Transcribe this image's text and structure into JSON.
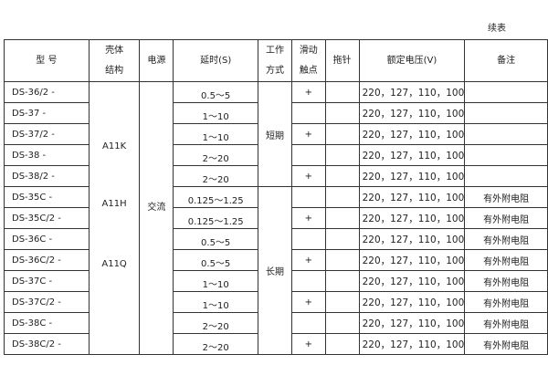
{
  "note": "续表",
  "headers": [
    "型 号",
    "壳体\n结构",
    "电源",
    "延时(S)",
    "工作\n方式",
    "滑动\n触点",
    "拖针",
    "额定电压(V)",
    "备注"
  ],
  "housing": [
    "A11K",
    "A11H",
    "A11Q"
  ],
  "power": "交流",
  "modes": [
    "短期",
    "长期"
  ],
  "rows": [
    {
      "model": "DS-36/2 -",
      "delay": "0.5～5",
      "slide": "+",
      "voltage": "220，127，110，100",
      "remark": ""
    },
    {
      "model": "DS-37  -",
      "delay": "1～10",
      "slide": "",
      "voltage": "220，127，110，100",
      "remark": ""
    },
    {
      "model": "DS-37/2 -",
      "delay": "1～10",
      "slide": "+",
      "voltage": "220，127，110，100",
      "remark": ""
    },
    {
      "model": "DS-38  -",
      "delay": "2～20",
      "slide": "",
      "voltage": "220，127，110，100",
      "remark": ""
    },
    {
      "model": "DS-38/2 -",
      "delay": "2～20",
      "slide": "+",
      "voltage": "220，127，110，100",
      "remark": ""
    },
    {
      "model": "DS-35C  -",
      "delay": "0.125～1.25",
      "slide": "",
      "voltage": "220，127，110，100",
      "remark": "有外附电阻"
    },
    {
      "model": "DS-35C/2 -",
      "delay": "0.125～1.25",
      "slide": "+",
      "voltage": "220，127，110，100",
      "remark": "有外附电阻"
    },
    {
      "model": "DS-36C  -",
      "delay": "0.5～5",
      "slide": "",
      "voltage": "220，127，110，100",
      "remark": "有外附电阻"
    },
    {
      "model": "DS-36C/2 -",
      "delay": "0.5～5",
      "slide": "+",
      "voltage": "220，127，110，100",
      "remark": "有外附电阻"
    },
    {
      "model": "DS-37C  -",
      "delay": "1～10",
      "slide": "",
      "voltage": "220，127，110，100",
      "remark": "有外附电阻"
    },
    {
      "model": "DS-37C/2 -",
      "delay": "1～10",
      "slide": "+",
      "voltage": "220，127，110，100",
      "remark": "有外附电阻"
    },
    {
      "model": "DS-38C  -",
      "delay": "2～20",
      "slide": "",
      "voltage": "220，127，110，100",
      "remark": "有外附电阻"
    },
    {
      "model": "DS-38C/2  -",
      "delay": "2～20",
      "slide": "+",
      "voltage": "220，127，110，100",
      "remark": "有外附电阻"
    }
  ]
}
